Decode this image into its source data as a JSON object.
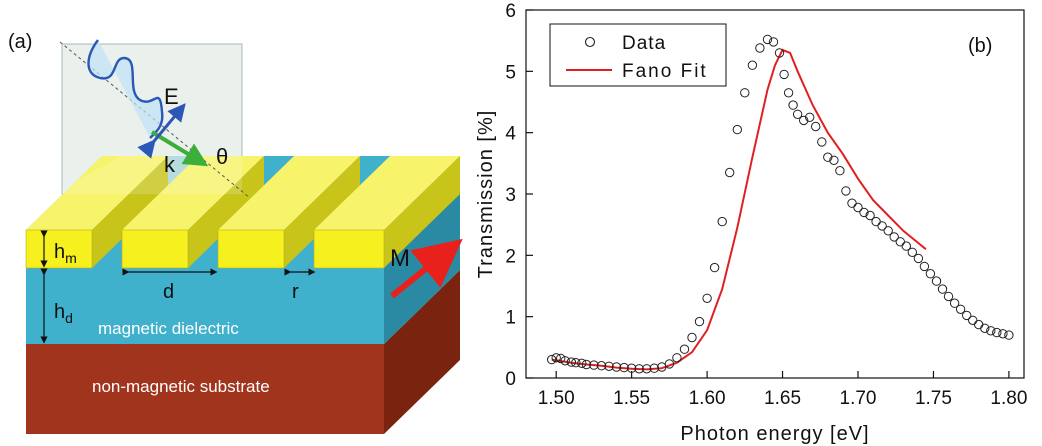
{
  "panel_a": {
    "label": "(a)",
    "labels": {
      "E": "E",
      "k": "k",
      "theta": "θ",
      "hm_main": "h",
      "hm_sub": "m",
      "hd_main": "h",
      "hd_sub": "d",
      "d": "d",
      "r": "r",
      "M": "M"
    },
    "layers": {
      "dielectric": "magnetic dielectric",
      "substrate": "non-magnetic substrate"
    },
    "colors": {
      "gold": "#f5f01e",
      "gold_side": "#c8c41a",
      "dielectric": "#3fb1cc",
      "dielectric_side": "#2b8aa3",
      "substrate": "#a0341c",
      "substrate_side": "#7a2410",
      "arrow_M": "#e8211c",
      "arrow_k": "#3cae3c",
      "arrow_E": "#2a57b8"
    }
  },
  "chart_data": {
    "type": "scatter",
    "panel_label": "(b)",
    "xlabel": "Photon energy [eV]",
    "ylabel": "Transmission [%]",
    "xlim": [
      1.48,
      1.81
    ],
    "ylim": [
      0,
      6
    ],
    "xticks": [
      "1.50",
      "1.55",
      "1.60",
      "1.65",
      "1.70",
      "1.75",
      "1.80"
    ],
    "yticks": [
      "0",
      "1",
      "2",
      "3",
      "4",
      "5",
      "6"
    ],
    "legend": {
      "placement": "top-left",
      "entries": [
        "Data",
        "Fano Fit"
      ]
    },
    "colors": {
      "data": "#222222",
      "fit": "#e02020"
    },
    "series": [
      {
        "name": "Data",
        "kind": "markers",
        "x": [
          1.497,
          1.5,
          1.503,
          1.506,
          1.51,
          1.513,
          1.517,
          1.52,
          1.525,
          1.53,
          1.535,
          1.54,
          1.545,
          1.55,
          1.555,
          1.56,
          1.565,
          1.57,
          1.575,
          1.58,
          1.585,
          1.59,
          1.595,
          1.6,
          1.605,
          1.61,
          1.615,
          1.62,
          1.625,
          1.63,
          1.635,
          1.64,
          1.644,
          1.648,
          1.651,
          1.654,
          1.657,
          1.66,
          1.664,
          1.668,
          1.672,
          1.676,
          1.68,
          1.684,
          1.688,
          1.692,
          1.696,
          1.7,
          1.704,
          1.708,
          1.712,
          1.716,
          1.72,
          1.724,
          1.728,
          1.732,
          1.736,
          1.74,
          1.744,
          1.748,
          1.752,
          1.756,
          1.76,
          1.764,
          1.768,
          1.772,
          1.776,
          1.78,
          1.784,
          1.788,
          1.792,
          1.796,
          1.8
        ],
        "y": [
          0.3,
          0.33,
          0.32,
          0.28,
          0.26,
          0.25,
          0.24,
          0.22,
          0.21,
          0.2,
          0.19,
          0.18,
          0.17,
          0.16,
          0.15,
          0.15,
          0.16,
          0.18,
          0.23,
          0.33,
          0.47,
          0.66,
          0.92,
          1.3,
          1.8,
          2.55,
          3.35,
          4.05,
          4.65,
          5.1,
          5.38,
          5.52,
          5.48,
          5.3,
          4.95,
          4.65,
          4.45,
          4.3,
          4.2,
          4.25,
          4.1,
          3.85,
          3.6,
          3.55,
          3.38,
          3.05,
          2.85,
          2.78,
          2.7,
          2.65,
          2.55,
          2.48,
          2.4,
          2.3,
          2.22,
          2.15,
          2.05,
          1.95,
          1.82,
          1.7,
          1.58,
          1.45,
          1.33,
          1.22,
          1.12,
          1.02,
          0.94,
          0.87,
          0.81,
          0.77,
          0.74,
          0.72,
          0.7
        ]
      },
      {
        "name": "Fano Fit",
        "kind": "line",
        "x": [
          1.497,
          1.51,
          1.52,
          1.53,
          1.54,
          1.55,
          1.56,
          1.57,
          1.58,
          1.59,
          1.6,
          1.61,
          1.62,
          1.63,
          1.64,
          1.645,
          1.65,
          1.655,
          1.66,
          1.67,
          1.68,
          1.69,
          1.7,
          1.71,
          1.72,
          1.73,
          1.74,
          1.745
        ],
        "y": [
          0.3,
          0.25,
          0.22,
          0.2,
          0.17,
          0.15,
          0.14,
          0.16,
          0.25,
          0.42,
          0.78,
          1.45,
          2.45,
          3.6,
          4.7,
          5.1,
          5.35,
          5.3,
          5.0,
          4.45,
          4.0,
          3.65,
          3.25,
          2.9,
          2.65,
          2.4,
          2.2,
          2.1
        ]
      }
    ]
  }
}
